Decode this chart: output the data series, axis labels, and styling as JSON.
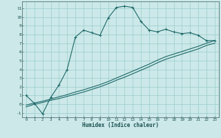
{
  "xlabel": "Humidex (Indice chaleur)",
  "bg_color": "#cce8e8",
  "grid_color": "#99cccc",
  "line_color": "#1a6666",
  "xlim": [
    -0.5,
    23.5
  ],
  "ylim": [
    -1.5,
    11.8
  ],
  "xticks": [
    0,
    1,
    2,
    3,
    4,
    5,
    6,
    7,
    8,
    9,
    10,
    11,
    12,
    13,
    14,
    15,
    16,
    17,
    18,
    19,
    20,
    21,
    22,
    23
  ],
  "yticks": [
    -1,
    0,
    1,
    2,
    3,
    4,
    5,
    6,
    7,
    8,
    9,
    10,
    11
  ],
  "series1_x": [
    0,
    1,
    2,
    3,
    4,
    5,
    6,
    7,
    8,
    9,
    10,
    11,
    12,
    13,
    14,
    15,
    16,
    17,
    18,
    19,
    20,
    21,
    22,
    23
  ],
  "series1_y": [
    1.0,
    0.1,
    -1.1,
    0.8,
    2.2,
    4.0,
    7.7,
    8.5,
    8.2,
    7.9,
    9.9,
    11.1,
    11.25,
    11.1,
    9.5,
    8.5,
    8.3,
    8.6,
    8.3,
    8.1,
    8.2,
    7.9,
    7.3,
    7.3
  ],
  "series2_x": [
    0,
    1,
    2,
    3,
    4,
    5,
    6,
    7,
    8,
    9,
    10,
    11,
    12,
    13,
    14,
    15,
    16,
    17,
    18,
    19,
    20,
    21,
    22,
    23
  ],
  "series2_y": [
    -0.1,
    0.15,
    0.35,
    0.6,
    0.85,
    1.1,
    1.4,
    1.65,
    1.95,
    2.25,
    2.6,
    3.0,
    3.4,
    3.8,
    4.2,
    4.6,
    5.05,
    5.45,
    5.75,
    6.05,
    6.35,
    6.65,
    7.0,
    7.3
  ],
  "series3_x": [
    0,
    1,
    2,
    3,
    4,
    5,
    6,
    7,
    8,
    9,
    10,
    11,
    12,
    13,
    14,
    15,
    16,
    17,
    18,
    19,
    20,
    21,
    22,
    23
  ],
  "series3_y": [
    -0.3,
    0.0,
    0.2,
    0.45,
    0.65,
    0.9,
    1.15,
    1.4,
    1.7,
    2.0,
    2.35,
    2.75,
    3.1,
    3.5,
    3.9,
    4.3,
    4.75,
    5.15,
    5.45,
    5.75,
    6.05,
    6.35,
    6.75,
    7.0
  ]
}
